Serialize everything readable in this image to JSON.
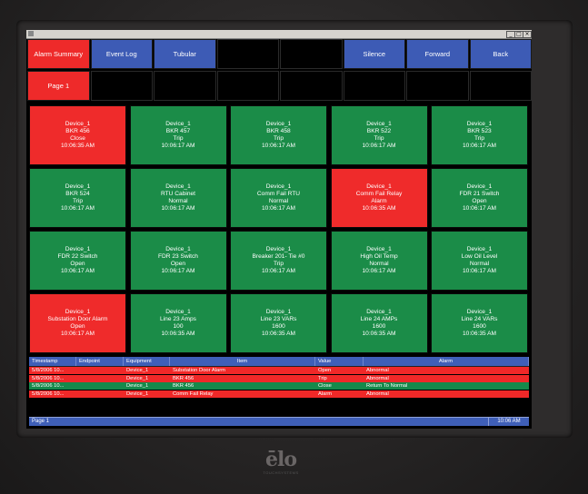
{
  "nav": {
    "row1": [
      {
        "label": "Alarm Summary",
        "color": "red"
      },
      {
        "label": "Event Log",
        "color": "blue"
      },
      {
        "label": "Tubular",
        "color": "blue"
      },
      {
        "label": "",
        "color": "black"
      },
      {
        "label": "",
        "color": "black"
      },
      {
        "label": "Silence",
        "color": "blue"
      },
      {
        "label": "Forward",
        "color": "blue"
      },
      {
        "label": "Back",
        "color": "blue"
      }
    ],
    "row2": [
      {
        "label": "Page 1",
        "color": "red"
      },
      {
        "label": "",
        "color": "black"
      },
      {
        "label": "",
        "color": "black"
      },
      {
        "label": "",
        "color": "black"
      },
      {
        "label": "",
        "color": "black"
      },
      {
        "label": "",
        "color": "black"
      },
      {
        "label": "",
        "color": "black"
      },
      {
        "label": "",
        "color": "black"
      }
    ]
  },
  "tiles": [
    {
      "device": "Device_1",
      "name": "BKR 456",
      "state": "Close",
      "time": "10:06:35 AM",
      "status": "red"
    },
    {
      "device": "Device_1",
      "name": "BKR 457",
      "state": "Trip",
      "time": "10:06:17 AM",
      "status": "green"
    },
    {
      "device": "Device_1",
      "name": "BKR 458",
      "state": "Trip",
      "time": "10:06:17 AM",
      "status": "green"
    },
    {
      "device": "Device_1",
      "name": "BKR 522",
      "state": "Trip",
      "time": "10:06:17 AM",
      "status": "green"
    },
    {
      "device": "Device_1",
      "name": "BKR 523",
      "state": "Trip",
      "time": "10:06:17 AM",
      "status": "green"
    },
    {
      "device": "Device_1",
      "name": "BKR 524",
      "state": "Trip",
      "time": "10:06:17 AM",
      "status": "green"
    },
    {
      "device": "Device_1",
      "name": "RTU Cabinet",
      "state": "Normal",
      "time": "10:06:17 AM",
      "status": "green"
    },
    {
      "device": "Device_1",
      "name": "Comm Fail RTU",
      "state": "Normal",
      "time": "10:06:17 AM",
      "status": "green"
    },
    {
      "device": "Device_1",
      "name": "Comm Fail Relay",
      "state": "Alarm",
      "time": "10:06:35 AM",
      "status": "red"
    },
    {
      "device": "Device_1",
      "name": "FDR 21 Switch",
      "state": "Open",
      "time": "10:06:17 AM",
      "status": "green"
    },
    {
      "device": "Device_1",
      "name": "FDR 22 Switch",
      "state": "Open",
      "time": "10:06:17 AM",
      "status": "green"
    },
    {
      "device": "Device_1",
      "name": "FDR 23 Switch",
      "state": "Open",
      "time": "10:06:17 AM",
      "status": "green"
    },
    {
      "device": "Device_1",
      "name": "Breaker 201- Tie #0",
      "state": "Trip",
      "time": "10:06:17 AM",
      "status": "green"
    },
    {
      "device": "Device_1",
      "name": "High Oil Temp",
      "state": "Normal",
      "time": "10:06:17 AM",
      "status": "green"
    },
    {
      "device": "Device_1",
      "name": "Low Oil Level",
      "state": "Normal",
      "time": "10:06:17 AM",
      "status": "green"
    },
    {
      "device": "Device_1",
      "name": "Substation Door Alarm",
      "state": "Open",
      "time": "10:06:17 AM",
      "status": "red"
    },
    {
      "device": "Device_1",
      "name": "Line 23 Amps",
      "state": "100",
      "time": "10:06:35 AM",
      "status": "green"
    },
    {
      "device": "Device_1",
      "name": "Line 23 VARs",
      "state": "1600",
      "time": "10:06:35 AM",
      "status": "green"
    },
    {
      "device": "Device_1",
      "name": "Line 24 AMPs",
      "state": "1600",
      "time": "10:06:35 AM",
      "status": "green"
    },
    {
      "device": "Device_1",
      "name": "Line 24 VARs",
      "state": "1600",
      "time": "10:06:35 AM",
      "status": "green"
    }
  ],
  "alarm_table": {
    "columns": [
      "Timestamp",
      "Endpoint",
      "Equipment",
      "Item",
      "Value",
      "Alarm"
    ],
    "rows": [
      {
        "timestamp": "5/8/2006 10...",
        "endpoint": "",
        "equipment": "Device_1",
        "item": "Substation Door Alarm",
        "value": "Open",
        "alarm": "Abnormal",
        "status": "red"
      },
      {
        "timestamp": "5/8/2006 10...",
        "endpoint": "",
        "equipment": "Device_1",
        "item": "BKR 456",
        "value": "Trip",
        "alarm": "Abnormal",
        "status": "red"
      },
      {
        "timestamp": "5/8/2006 10...",
        "endpoint": "",
        "equipment": "Device_1",
        "item": "BKR 456",
        "value": "Close",
        "alarm": "Return To Normal",
        "status": "green"
      },
      {
        "timestamp": "5/8/2006 10...",
        "endpoint": "",
        "equipment": "Device_1",
        "item": "Comm Fail Relay",
        "value": "Alarm",
        "alarm": "Abnormal",
        "status": "red"
      }
    ]
  },
  "status_bar": {
    "page": "Page 1",
    "time": "10:06 AM"
  },
  "window_buttons": {
    "minimize": "_",
    "maximize": "□",
    "close": "×"
  },
  "logo": {
    "text": "ēlo",
    "sub": "TOUCHSYSTEMS"
  },
  "colors": {
    "alarm_red": "#ef2b2b",
    "normal_green": "#1b8c48",
    "nav_blue": "#3d5bb5",
    "background": "#000000"
  }
}
